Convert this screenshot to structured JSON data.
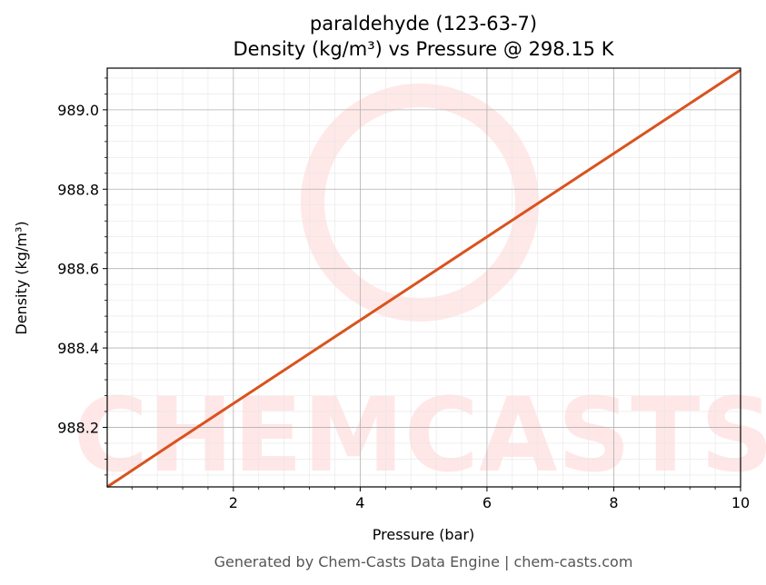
{
  "chart_data": {
    "type": "line",
    "title": "paraldehyde (123-63-7)",
    "subtitle": "Density (kg/m³) vs Pressure @ 298.15 K",
    "xlabel": "Pressure (bar)",
    "ylabel": "Density (kg/m³)",
    "xlim": [
      0.01,
      10
    ],
    "ylim": [
      988.05,
      989.105
    ],
    "x_ticks": [
      2,
      4,
      6,
      8,
      10
    ],
    "x_tick_labels": [
      "2",
      "4",
      "6",
      "8",
      "10"
    ],
    "y_ticks": [
      988.2,
      988.4,
      988.6,
      988.8,
      989.0
    ],
    "y_tick_labels": [
      "988.2",
      "988.4",
      "988.6",
      "988.8",
      "989.0"
    ],
    "grid": true,
    "legend": "none",
    "series": [
      {
        "color": "#d9531e",
        "x": [
          0.01,
          1,
          2,
          3,
          4,
          5,
          6,
          7,
          8,
          9,
          10
        ],
        "y": [
          988.05,
          988.155,
          988.26,
          988.365,
          988.47,
          988.575,
          988.68,
          988.785,
          988.89,
          988.995,
          989.1
        ]
      }
    ]
  },
  "watermark": {
    "text": "CHEMCASTS",
    "color": "#ff0000"
  },
  "footer": {
    "text": "Generated by Chem-Casts Data Engine | chem-casts.com"
  }
}
